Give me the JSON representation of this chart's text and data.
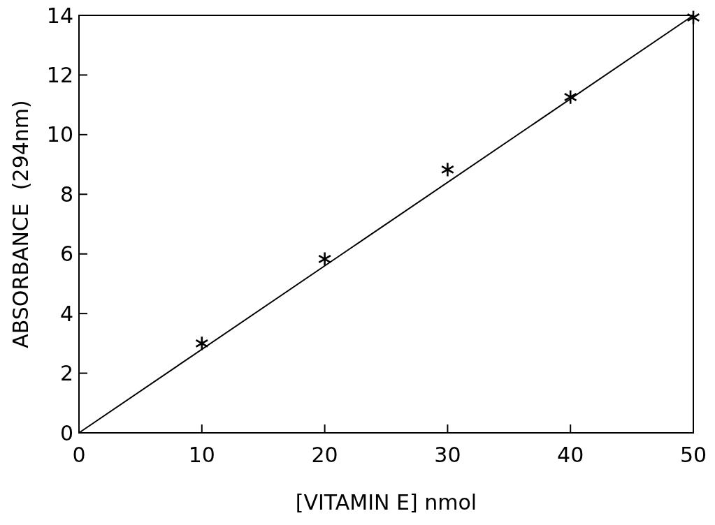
{
  "chart_data": {
    "type": "scatter",
    "xlabel": "[VITAMIN E] nmol",
    "ylabel": "ABSORBANCE  (294nm)",
    "x": [
      10,
      20,
      30,
      40,
      50
    ],
    "series": [
      {
        "color": "#000000",
        "marker": "cross",
        "values": [
          3.0,
          5.83,
          8.83,
          11.26,
          13.93
        ]
      },
      {
        "type": "line",
        "color": "#000000",
        "marker": "none",
        "x": [
          0,
          50
        ],
        "values": [
          0,
          14
        ]
      }
    ],
    "xlim": [
      0,
      50
    ],
    "ylim": [
      0,
      14
    ],
    "xticks": [
      0,
      10,
      20,
      30,
      40,
      50
    ],
    "yticks": [
      0,
      2,
      4,
      6,
      8,
      10,
      12,
      14
    ],
    "grid": false
  }
}
